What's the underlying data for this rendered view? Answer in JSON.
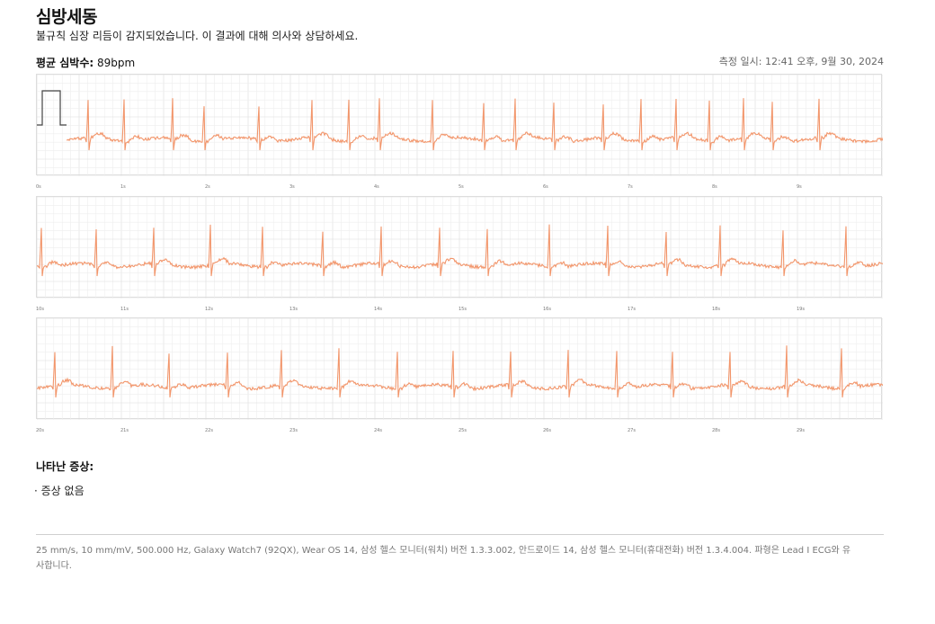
{
  "report": {
    "title": "심방세동",
    "subtitle": "불규칙 심장 리듬이 감지되었습니다. 이 결과에 대해 의사와 상담하세요.",
    "avg_hr_label": "평균 심박수:",
    "avg_hr_value": "89bpm",
    "measured_at": "측정 일시: 12:41 오후, 9월 30, 2024"
  },
  "ecg": {
    "trace_color": "#f2956a",
    "grid_minor_color": "#eeeeee",
    "grid_major_color": "#dcdcdc",
    "strips": [
      {
        "ticks": [
          "0s",
          "1s",
          "2s",
          "3s",
          "4s",
          "5s",
          "6s",
          "7s",
          "8s",
          "9s"
        ]
      },
      {
        "ticks": [
          "10s",
          "11s",
          "12s",
          "13s",
          "14s",
          "15s",
          "16s",
          "17s",
          "18s",
          "19s"
        ]
      },
      {
        "ticks": [
          "20s",
          "21s",
          "22s",
          "23s",
          "24s",
          "25s",
          "26s",
          "27s",
          "28s",
          "29s"
        ]
      }
    ]
  },
  "symptoms": {
    "title": "나타난 증상:",
    "items": [
      "· 증상 없음"
    ]
  },
  "footer": {
    "text": "25 mm/s, 10 mm/mV, 500.000 Hz, Galaxy Watch7 (92QX), Wear OS 14, 삼성 헬스 모니터(워치) 버전 1.3.3.002, 안드로이드 14, 삼성 헬스 모니터(휴대전화) 버전 1.3.4.004. 파형은 Lead I ECG와 유사합니다."
  }
}
